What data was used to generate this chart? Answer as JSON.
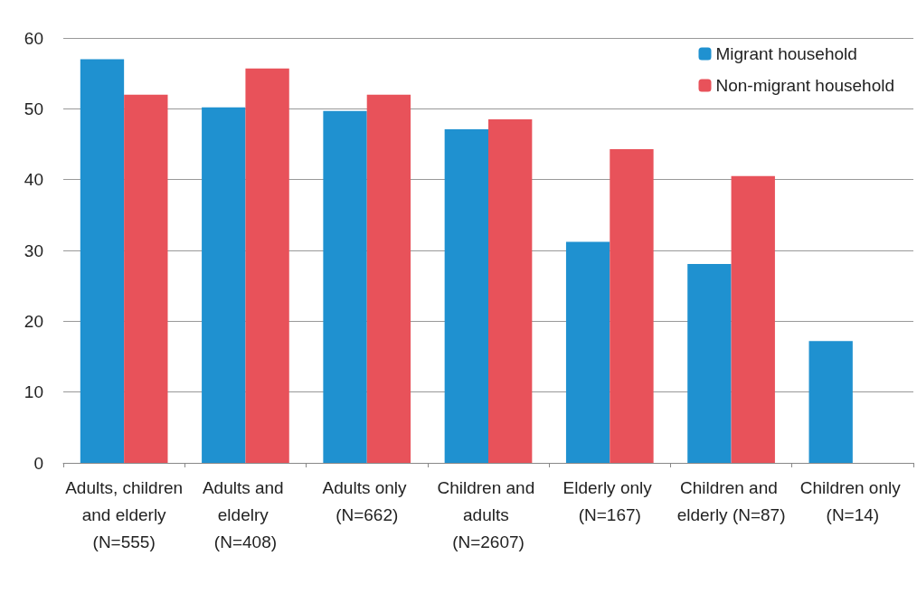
{
  "chart_data": {
    "type": "bar",
    "categories": [
      "Adults, children and elderly (N=555)",
      "Adults and eldelry (N=408)",
      "Adults only (N=662)",
      "Children and adults (N=2607)",
      "Elderly only (N=167)",
      "Children and elderly (N=87)",
      "Children only (N=14)"
    ],
    "series": [
      {
        "name": "Migrant household",
        "color": "#1f91d0",
        "values": [
          57.0,
          50.2,
          49.7,
          47.1,
          31.2,
          28.1,
          17.2
        ]
      },
      {
        "name": "Non-migrant household",
        "color": "#e8525a",
        "values": [
          52.0,
          55.7,
          52.0,
          48.5,
          44.3,
          40.5,
          null
        ]
      }
    ],
    "ylim": [
      0,
      60
    ],
    "yticks": [
      0,
      10,
      20,
      30,
      40,
      50,
      60
    ],
    "grid": "y",
    "legend": "top right"
  }
}
